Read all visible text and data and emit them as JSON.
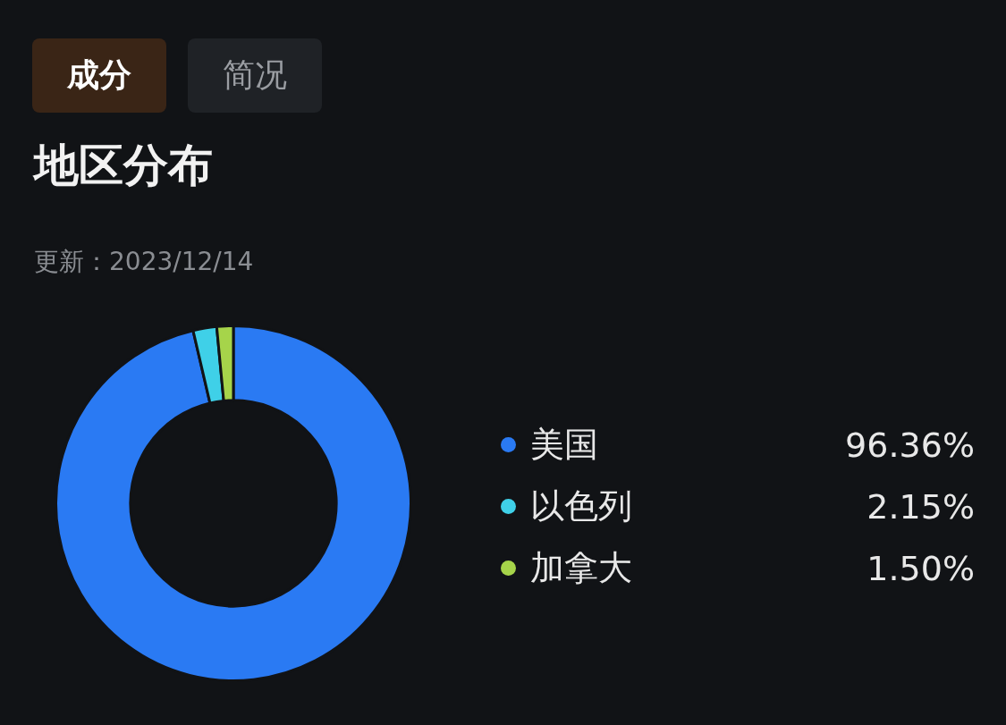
{
  "chart_data": {
    "type": "donut",
    "title": "地区分布",
    "subtitle": "更新：2023/12/14",
    "annotations": [
      "成分",
      "简况"
    ],
    "categories": [
      "美国",
      "以色列",
      "加拿大"
    ],
    "values": [
      96.36,
      2.15,
      1.5
    ],
    "colors": [
      "#2a7af3",
      "#3fd0e8",
      "#a6d44a"
    ],
    "value_labels": [
      "96.36%",
      "2.15%",
      "1.50%"
    ],
    "legend": "right"
  }
}
